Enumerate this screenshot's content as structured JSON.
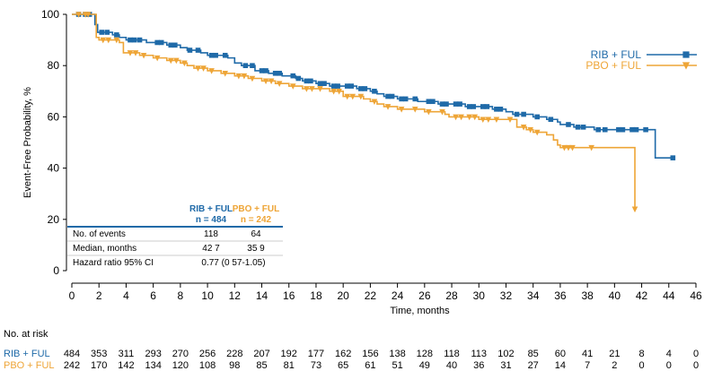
{
  "chart_data": {
    "type": "line",
    "subtype": "kaplan-meier",
    "ylabel": "Event-Free Probability, %",
    "xlabel": "Time, months",
    "xlim": [
      0,
      46
    ],
    "ylim": [
      0,
      100
    ],
    "x_ticks": [
      0,
      2,
      4,
      6,
      8,
      10,
      12,
      14,
      16,
      18,
      20,
      22,
      24,
      26,
      28,
      30,
      32,
      34,
      36,
      38,
      40,
      42,
      44,
      46
    ],
    "y_ticks": [
      0,
      20,
      40,
      60,
      80,
      100
    ],
    "colors": {
      "rib": "#1f6aa8",
      "pbo": "#eea537",
      "axis": "#000000"
    },
    "series": [
      {
        "key": "rib",
        "name": "RIB + FUL",
        "marker": "square",
        "points": [
          [
            0,
            100
          ],
          [
            1.5,
            100
          ],
          [
            1.7,
            96
          ],
          [
            1.9,
            93
          ],
          [
            3,
            92
          ],
          [
            3.5,
            91
          ],
          [
            4,
            90
          ],
          [
            5.5,
            89
          ],
          [
            7,
            88
          ],
          [
            8,
            87
          ],
          [
            8.5,
            86
          ],
          [
            9.5,
            85
          ],
          [
            10,
            84
          ],
          [
            11,
            84
          ],
          [
            11.5,
            83
          ],
          [
            12,
            81
          ],
          [
            12.5,
            80
          ],
          [
            13.5,
            78
          ],
          [
            14.5,
            77
          ],
          [
            15.5,
            76
          ],
          [
            16,
            76
          ],
          [
            16.5,
            75
          ],
          [
            17,
            74
          ],
          [
            18,
            73
          ],
          [
            19,
            72
          ],
          [
            20,
            72
          ],
          [
            21,
            71
          ],
          [
            22,
            70
          ],
          [
            22.5,
            69
          ],
          [
            23,
            68
          ],
          [
            24,
            67
          ],
          [
            25,
            67
          ],
          [
            25.5,
            66
          ],
          [
            26,
            66
          ],
          [
            27,
            65
          ],
          [
            28,
            65
          ],
          [
            29,
            64
          ],
          [
            30,
            64
          ],
          [
            31,
            63
          ],
          [
            32,
            62
          ],
          [
            32.5,
            61
          ],
          [
            33.5,
            61
          ],
          [
            34,
            60
          ],
          [
            34.5,
            60
          ],
          [
            35,
            59
          ],
          [
            35.8,
            58
          ],
          [
            36,
            57
          ],
          [
            37,
            56
          ],
          [
            38,
            56
          ],
          [
            38.5,
            55
          ],
          [
            40,
            55
          ],
          [
            41,
            55
          ],
          [
            42,
            55
          ],
          [
            42.8,
            55
          ],
          [
            43,
            44
          ],
          [
            44.3,
            44
          ]
        ],
        "censor_x": [
          0.5,
          1,
          1.3,
          2.2,
          2.6,
          3.3,
          4.3,
          4.6,
          5,
          6.3,
          6.6,
          7.3,
          7.6,
          8.7,
          9.3,
          10.3,
          10.6,
          11.3,
          12.8,
          13.3,
          14,
          14.3,
          15,
          15.3,
          16.3,
          16.7,
          17.3,
          17.6,
          18.3,
          18.6,
          19.3,
          19.6,
          20.3,
          20.6,
          21.3,
          21.6,
          22.3,
          23.3,
          23.6,
          24.3,
          24.6,
          25.3,
          26.3,
          26.6,
          27.3,
          27.6,
          28.3,
          28.6,
          29.3,
          29.6,
          30.3,
          30.6,
          31.3,
          31.6,
          32.8,
          33.3,
          34.3,
          35.3,
          36.6,
          37.3,
          37.7,
          38.8,
          39.3,
          40.3,
          40.6,
          41.3,
          41.6,
          42.3,
          44.3
        ]
      },
      {
        "key": "pbo",
        "name": "PBO + FUL",
        "marker": "triangle-down",
        "points": [
          [
            0,
            100
          ],
          [
            1.6,
            100
          ],
          [
            1.8,
            91
          ],
          [
            2,
            90
          ],
          [
            3.5,
            89
          ],
          [
            3.8,
            85
          ],
          [
            5,
            84
          ],
          [
            6,
            83
          ],
          [
            7,
            82
          ],
          [
            8,
            81
          ],
          [
            8.5,
            80
          ],
          [
            9,
            79
          ],
          [
            10,
            78
          ],
          [
            11,
            77
          ],
          [
            12,
            76
          ],
          [
            13,
            75
          ],
          [
            14,
            74
          ],
          [
            15,
            73
          ],
          [
            16,
            72
          ],
          [
            17,
            71
          ],
          [
            18,
            71
          ],
          [
            19,
            70
          ],
          [
            20,
            68
          ],
          [
            21,
            68
          ],
          [
            21.5,
            67
          ],
          [
            22,
            66
          ],
          [
            22.5,
            65
          ],
          [
            23,
            64
          ],
          [
            24,
            63
          ],
          [
            25,
            63
          ],
          [
            26,
            62
          ],
          [
            27,
            62
          ],
          [
            27.5,
            61
          ],
          [
            27.8,
            60
          ],
          [
            28,
            60
          ],
          [
            30,
            59
          ],
          [
            31,
            59
          ],
          [
            32,
            59
          ],
          [
            32.8,
            56
          ],
          [
            33.5,
            55
          ],
          [
            34,
            54
          ],
          [
            35,
            53
          ],
          [
            35.5,
            51
          ],
          [
            35.8,
            49
          ],
          [
            36,
            48
          ],
          [
            37,
            48
          ],
          [
            38,
            48
          ],
          [
            40,
            48
          ],
          [
            41.5,
            48
          ],
          [
            41.5,
            24
          ]
        ],
        "censor_x": [
          0.5,
          1,
          1.2,
          2.3,
          2.7,
          3.3,
          4.3,
          4.7,
          5.3,
          6.3,
          7.3,
          7.7,
          8.3,
          9.3,
          9.7,
          10.3,
          11.3,
          12.3,
          12.7,
          13.3,
          14.3,
          14.7,
          15.3,
          16.3,
          17.3,
          17.7,
          18.3,
          19.3,
          19.7,
          20.3,
          20.7,
          21.3,
          22.3,
          23.3,
          24.3,
          25.3,
          26.3,
          27.3,
          28.3,
          28.7,
          29.3,
          29.7,
          30.3,
          30.7,
          31.3,
          32.3,
          33.3,
          33.8,
          34.3,
          36.3,
          36.6,
          36.9,
          38.3,
          41.5
        ]
      }
    ],
    "legend": [
      {
        "key": "rib",
        "label": "RIB + FUL"
      },
      {
        "key": "pbo",
        "label": "PBO + FUL"
      }
    ],
    "inset_table": {
      "headers": [
        {
          "key": "rib",
          "line1": "RIB + FUL",
          "line2": "n = 484"
        },
        {
          "key": "pbo",
          "line1": "PBO + FUL",
          "line2": "n = 242"
        }
      ],
      "rows": [
        {
          "label": "No. of events",
          "values": [
            "118",
            "64"
          ]
        },
        {
          "label": "Median, months",
          "values": [
            "42 7",
            "35 9"
          ]
        }
      ],
      "hazard": {
        "label": "Hazard ratio  95% CI",
        "value": "0.77 (0 57-1.05)"
      }
    },
    "at_risk": {
      "title": "No. at risk",
      "rows": [
        {
          "key": "rib",
          "label": "RIB + FUL",
          "values": [
            "484",
            "353",
            "311",
            "293",
            "270",
            "256",
            "228",
            "207",
            "192",
            "177",
            "162",
            "156",
            "138",
            "128",
            "118",
            "113",
            "102",
            "85",
            "60",
            "41",
            "21",
            "8",
            "4",
            "0"
          ]
        },
        {
          "key": "pbo",
          "label": "PBO + FUL",
          "values": [
            "242",
            "170",
            "142",
            "134",
            "120",
            "108",
            "98",
            "85",
            "81",
            "73",
            "65",
            "61",
            "51",
            "49",
            "40",
            "36",
            "31",
            "27",
            "14",
            "7",
            "2",
            "0",
            "0",
            "0"
          ]
        }
      ]
    }
  }
}
